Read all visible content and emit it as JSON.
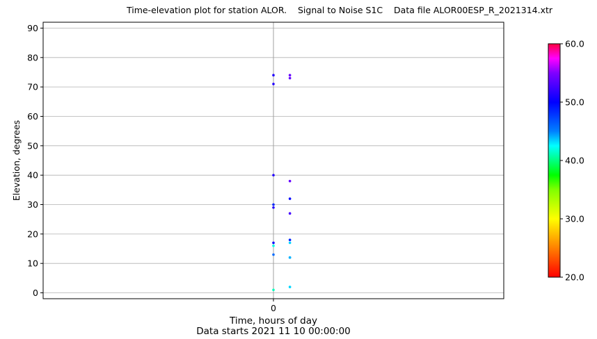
{
  "chart_data": {
    "type": "scatter",
    "title": "Time-elevation plot for station ALOR.    Signal to Noise S1C    Data file ALOR00ESP_R_2021314.xtr",
    "xlabel": "Time, hours of day",
    "xlabel2": "Data starts 2021 11 10 00:00:00",
    "ylabel": "Elevation, degrees",
    "x_ticks": [
      "0"
    ],
    "y_ticks": [
      0,
      10,
      20,
      30,
      40,
      50,
      60,
      70,
      80,
      90
    ],
    "xlim": [
      -0.07,
      0.07
    ],
    "ylim": [
      -2,
      92
    ],
    "grid": true,
    "colorbar": {
      "min": 20,
      "max": 60,
      "ticks": [
        "20.0",
        "30.0",
        "40.0",
        "50.0",
        "60.0"
      ]
    },
    "points": [
      {
        "x": 0.0,
        "y": 74,
        "snr": 50
      },
      {
        "x": 0.0,
        "y": 71,
        "snr": 50
      },
      {
        "x": 0.005,
        "y": 74,
        "snr": 52
      },
      {
        "x": 0.005,
        "y": 73,
        "snr": 52
      },
      {
        "x": 0.0,
        "y": 40,
        "snr": 50
      },
      {
        "x": 0.005,
        "y": 38,
        "snr": 52
      },
      {
        "x": 0.005,
        "y": 32,
        "snr": 49
      },
      {
        "x": 0.0,
        "y": 30,
        "snr": 48
      },
      {
        "x": 0.0,
        "y": 29,
        "snr": 50
      },
      {
        "x": 0.005,
        "y": 27,
        "snr": 51
      },
      {
        "x": 0.005,
        "y": 18,
        "snr": 48
      },
      {
        "x": 0.005,
        "y": 17,
        "snr": 43
      },
      {
        "x": 0.0,
        "y": 17,
        "snr": 49
      },
      {
        "x": 0.0,
        "y": 16,
        "snr": 41
      },
      {
        "x": 0.0,
        "y": 13,
        "snr": 46
      },
      {
        "x": 0.005,
        "y": 12,
        "snr": 45
      },
      {
        "x": 0.005,
        "y": 12,
        "snr": 44
      },
      {
        "x": 0.005,
        "y": 2,
        "snr": 43
      },
      {
        "x": 0.0,
        "y": 1,
        "snr": 40
      }
    ]
  }
}
